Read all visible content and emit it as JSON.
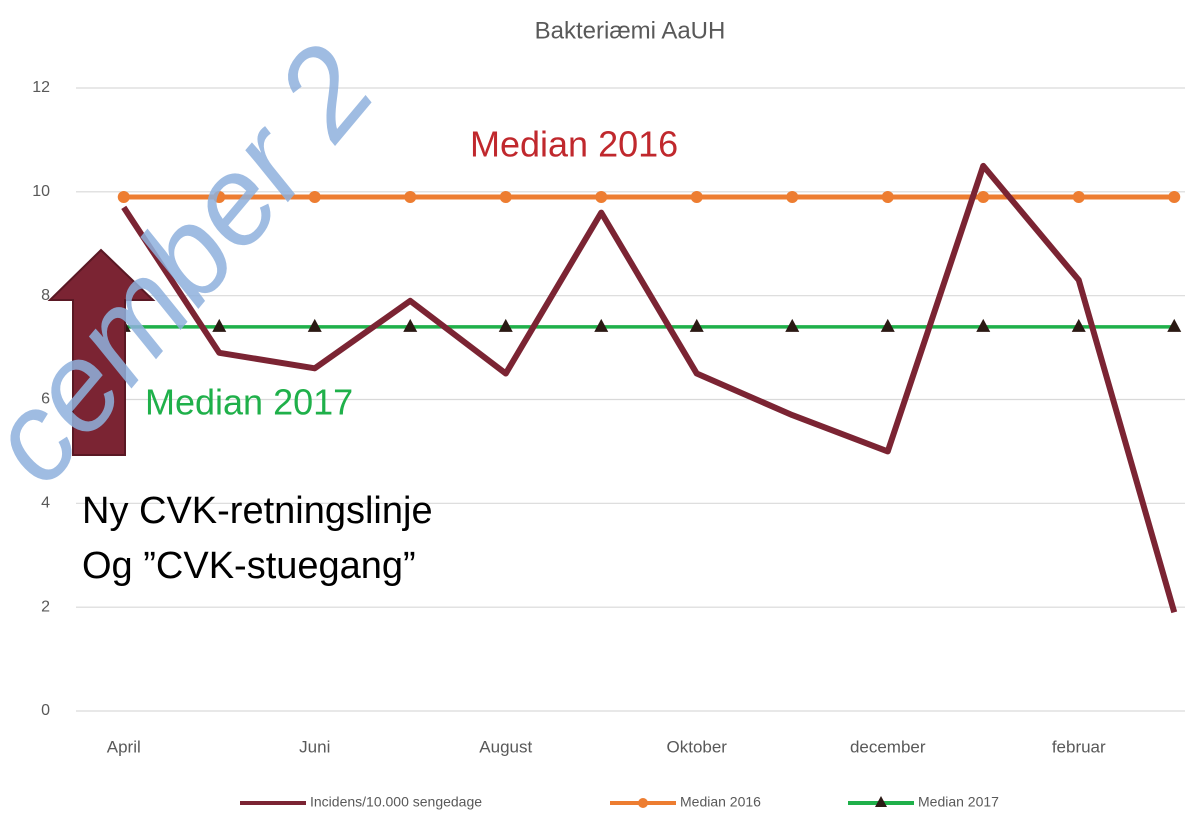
{
  "chart_data": {
    "type": "line",
    "title": "Bakteriæmi AaUH",
    "categories": [
      "April",
      null,
      "Juni",
      null,
      "August",
      null,
      "Oktober",
      null,
      "december",
      null,
      "februar",
      null
    ],
    "series": [
      {
        "name": "Incidens/10.000 sengedage",
        "color": "#7b2433",
        "values": [
          9.7,
          6.9,
          6.6,
          7.9,
          6.5,
          9.6,
          6.5,
          5.7,
          5.0,
          10.5,
          8.3,
          1.9
        ]
      },
      {
        "name": "Median 2016",
        "color": "#ed7d31",
        "marker": "circle",
        "values": [
          9.9,
          9.9,
          9.9,
          9.9,
          9.9,
          9.9,
          9.9,
          9.9,
          9.9,
          9.9,
          9.9,
          9.9
        ]
      },
      {
        "name": "Median 2017",
        "color": "#1fb04a",
        "marker": "triangle",
        "values": [
          7.4,
          7.4,
          7.4,
          7.4,
          7.4,
          7.4,
          7.4,
          7.4,
          7.4,
          7.4,
          7.4,
          7.4
        ]
      }
    ],
    "ylim": [
      0,
      12
    ],
    "yticks": [
      0,
      2,
      4,
      6,
      8,
      10,
      12
    ],
    "grid": true,
    "legend": "bottom",
    "annotations": {
      "median_2016": "Median 2016",
      "median_2017": "Median 2017",
      "note_line1": "Ny CVK-retningslinje",
      "note_line2": "Og ”CVK-stuegang”",
      "watermark": "cember 2"
    }
  }
}
